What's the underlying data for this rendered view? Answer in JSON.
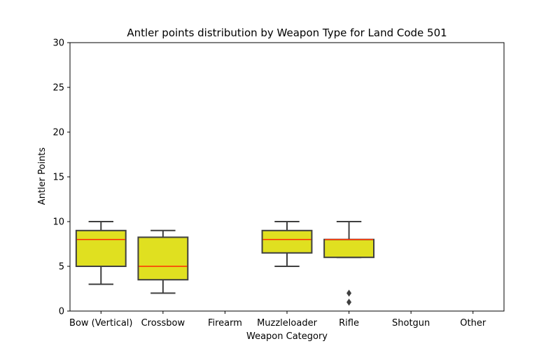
{
  "chart_data": {
    "type": "box",
    "title": "Antler points distribution by Weapon Type for Land Code 501",
    "xlabel": "Weapon Category",
    "ylabel": "Antler Points",
    "ylim": [
      0,
      30
    ],
    "yticks": [
      0,
      5,
      10,
      15,
      20,
      25,
      30
    ],
    "grid": false,
    "box_color": "#e0e020",
    "median_color": "#ff2a00",
    "edge_color": "#3f3f3f",
    "categories": [
      "Bow (Vertical)",
      "Crossbow",
      "Firearm",
      "Muzzleloader",
      "Rifle",
      "Shotgun",
      "Other"
    ],
    "boxes": [
      {
        "category": "Bow (Vertical)",
        "whisker_low": 3,
        "q1": 5,
        "median": 8,
        "q3": 9,
        "whisker_high": 10,
        "outliers": []
      },
      {
        "category": "Crossbow",
        "whisker_low": 2,
        "q1": 3.5,
        "median": 5,
        "q3": 8.25,
        "whisker_high": 9,
        "outliers": []
      },
      {
        "category": "Firearm",
        "whisker_low": null,
        "q1": null,
        "median": null,
        "q3": null,
        "whisker_high": null,
        "outliers": []
      },
      {
        "category": "Muzzleloader",
        "whisker_low": 5,
        "q1": 6.5,
        "median": 8,
        "q3": 9,
        "whisker_high": 10,
        "outliers": []
      },
      {
        "category": "Rifle",
        "whisker_low": 6,
        "q1": 6,
        "median": 8,
        "q3": 8,
        "whisker_high": 10,
        "outliers": [
          1,
          2
        ]
      },
      {
        "category": "Shotgun",
        "whisker_low": null,
        "q1": null,
        "median": null,
        "q3": null,
        "whisker_high": null,
        "outliers": []
      },
      {
        "category": "Other",
        "whisker_low": null,
        "q1": null,
        "median": null,
        "q3": null,
        "whisker_high": null,
        "outliers": []
      }
    ]
  }
}
